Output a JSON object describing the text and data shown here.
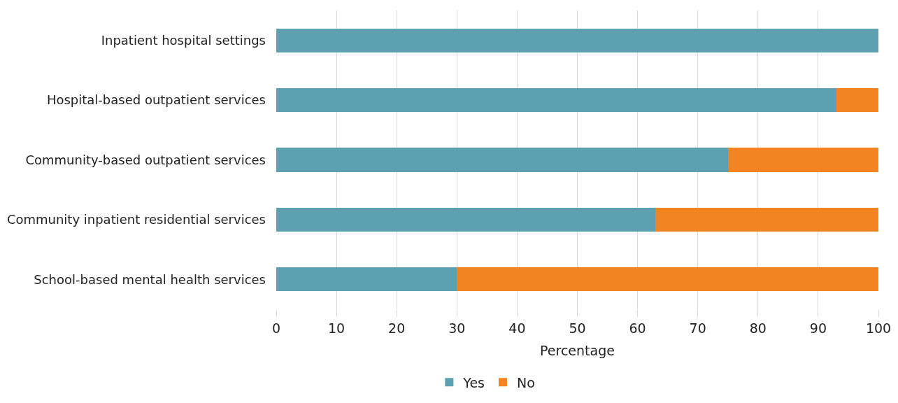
{
  "chart_data": {
    "type": "bar",
    "orientation": "horizontal",
    "stacked": true,
    "categories": [
      "Inpatient hospital settings",
      "Hospital-based outpatient services",
      "Community-based outpatient services",
      "Community inpatient residential services",
      "School-based mental health services"
    ],
    "series": [
      {
        "name": "Yes",
        "color": "#5ca0b2",
        "values": [
          100,
          93,
          75,
          63,
          30
        ]
      },
      {
        "name": "No",
        "color": "#f48322",
        "values": [
          0,
          7,
          25,
          37,
          70
        ]
      }
    ],
    "xlabel": "Percentage",
    "xlim": [
      0,
      100
    ],
    "xticks": [
      0,
      10,
      20,
      30,
      40,
      50,
      60,
      70,
      80,
      90,
      100
    ],
    "grid": "x",
    "legend": "bottom"
  }
}
